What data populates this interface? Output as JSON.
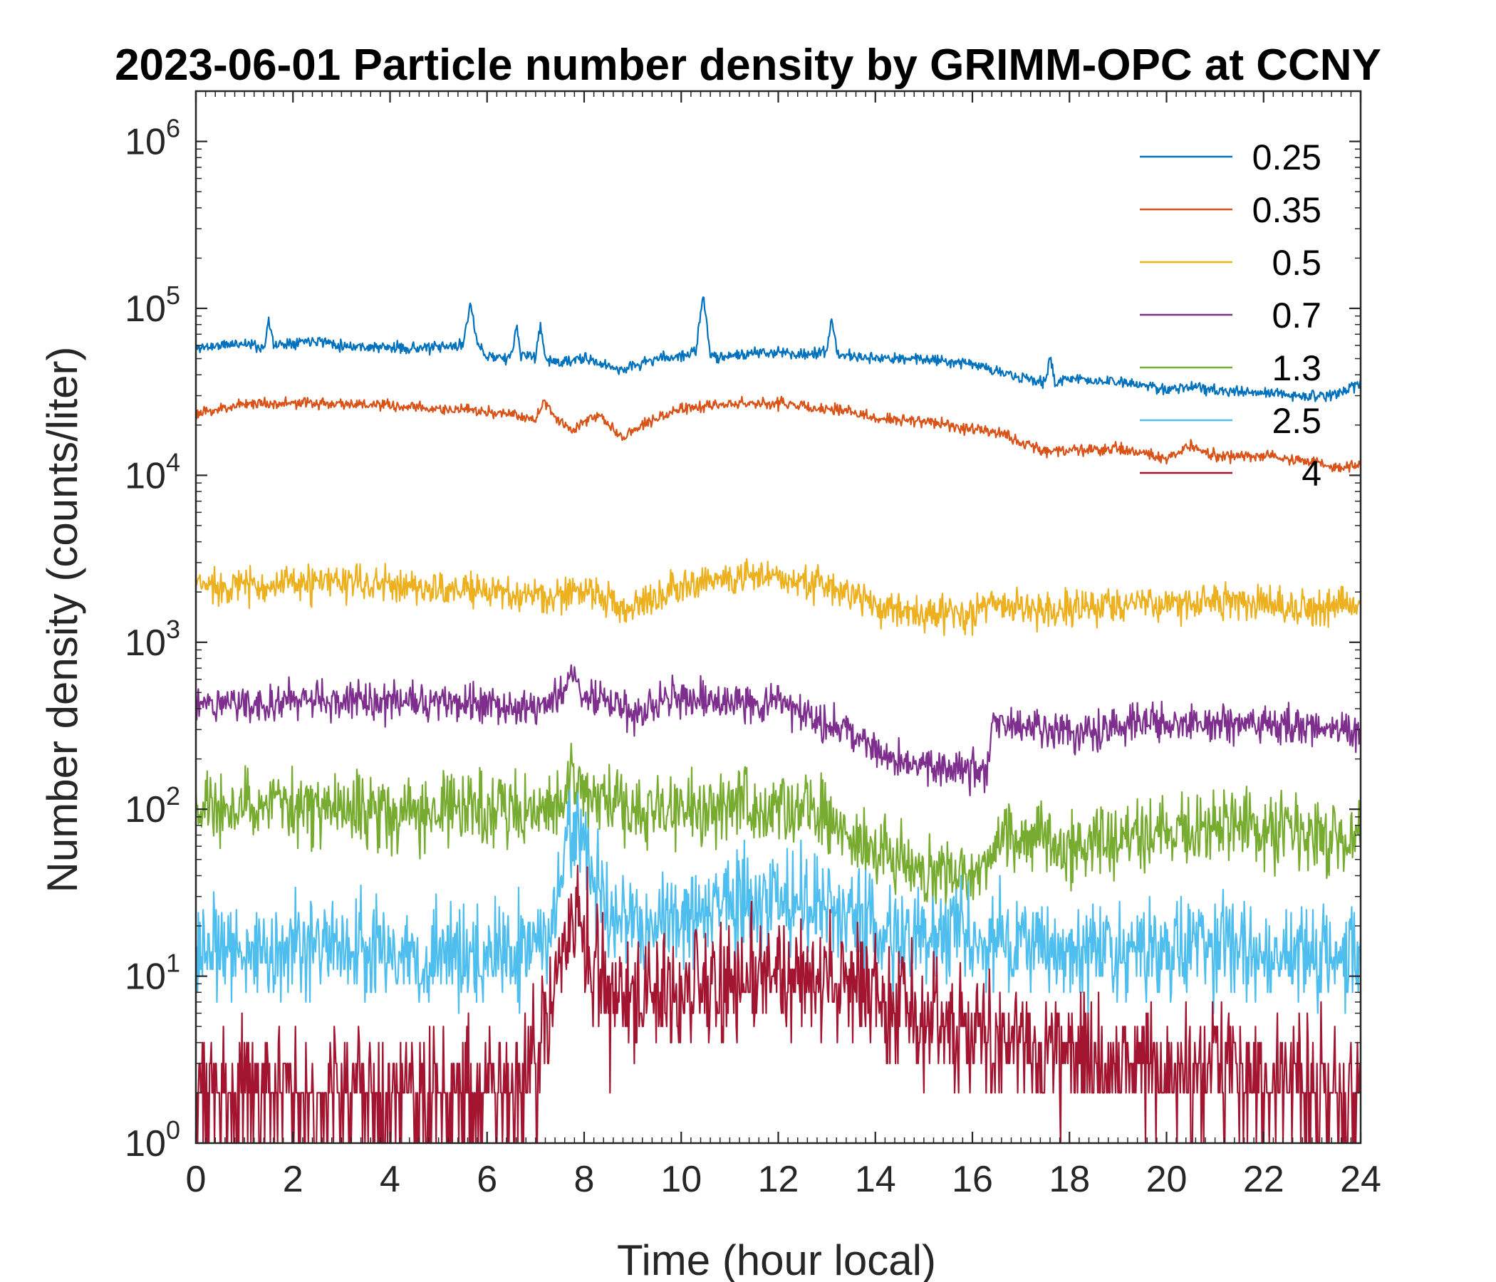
{
  "chart_data": {
    "type": "line",
    "title": "2023-06-01 Particle number density by GRIMM-OPC at CCNY",
    "xlabel": "Time (hour local)",
    "ylabel": "Number density (counts/liter)",
    "xlim": [
      0,
      24
    ],
    "xticks": [
      0,
      2,
      4,
      6,
      8,
      10,
      12,
      14,
      16,
      18,
      20,
      22,
      24
    ],
    "yscale": "log",
    "ylim": [
      1,
      2000000
    ],
    "yticks": [
      {
        "value": 1,
        "base": "10",
        "exp": "0"
      },
      {
        "value": 10,
        "base": "10",
        "exp": "1"
      },
      {
        "value": 100,
        "base": "10",
        "exp": "2"
      },
      {
        "value": 1000,
        "base": "10",
        "exp": "3"
      },
      {
        "value": 10000,
        "base": "10",
        "exp": "4"
      },
      {
        "value": 100000,
        "base": "10",
        "exp": "5"
      },
      {
        "value": 1000000,
        "base": "10",
        "exp": "6"
      }
    ],
    "legend_position": "top-right",
    "series": [
      {
        "name": "0.25",
        "color": "#0072BD",
        "x": [
          0,
          1,
          1.4,
          1.5,
          1.6,
          2,
          2.5,
          3,
          4,
          5,
          5.5,
          5.65,
          5.8,
          6,
          6.5,
          6.6,
          6.7,
          7,
          7.1,
          7.2,
          7.5,
          8,
          8.5,
          8.8,
          9,
          9.5,
          10,
          10.3,
          10.45,
          10.6,
          11,
          12,
          12.5,
          13,
          13.1,
          13.2,
          13.4,
          14,
          15,
          16,
          16.5,
          17,
          17.5,
          17.6,
          17.7,
          18,
          19,
          20,
          20.5,
          21,
          22,
          23,
          23.5,
          24
        ],
        "values": [
          58000,
          62000,
          58000,
          85000,
          60000,
          63000,
          65000,
          60000,
          58000,
          58000,
          60000,
          110000,
          60000,
          52000,
          50000,
          80000,
          52000,
          52000,
          80000,
          50000,
          47000,
          50000,
          45000,
          43000,
          45000,
          50000,
          52000,
          55000,
          120000,
          52000,
          52000,
          55000,
          53000,
          55000,
          85000,
          55000,
          52000,
          50000,
          50000,
          47000,
          42000,
          38000,
          36000,
          52000,
          36000,
          38000,
          36000,
          33000,
          34000,
          32000,
          31000,
          30000,
          30000,
          36000
        ],
        "noise": 0.05,
        "seed": 11
      },
      {
        "name": "0.35",
        "color": "#D95319",
        "x": [
          0,
          0.5,
          1,
          2,
          3,
          4,
          5,
          6,
          7,
          7.2,
          7.4,
          7.8,
          8,
          8.3,
          8.6,
          8.8,
          9,
          9.5,
          10,
          10.5,
          11,
          12,
          12.5,
          13,
          13.5,
          14,
          15,
          16,
          16.5,
          17,
          17.5,
          18,
          19,
          20,
          20.5,
          21,
          22,
          23,
          23.5,
          24
        ],
        "values": [
          23000,
          25000,
          27000,
          27000,
          27000,
          26000,
          25000,
          24000,
          22000,
          28000,
          22000,
          19000,
          21000,
          23000,
          19000,
          17000,
          19000,
          22000,
          25000,
          26000,
          27000,
          27000,
          26000,
          25000,
          24000,
          22000,
          21000,
          19000,
          18000,
          16000,
          14000,
          14000,
          14500,
          12500,
          15000,
          13000,
          13000,
          12000,
          11000,
          11500
        ],
        "noise": 0.05,
        "seed": 23
      },
      {
        "name": "0.5",
        "color": "#EDB120",
        "x": [
          0,
          1,
          2,
          3,
          4,
          5,
          6,
          7,
          7.5,
          7.8,
          8,
          8.5,
          9,
          9.5,
          10,
          11,
          12,
          12.5,
          13,
          13.5,
          14,
          15,
          16,
          16.5,
          17,
          18,
          19,
          20,
          21,
          22,
          23,
          24
        ],
        "values": [
          2200,
          2200,
          2200,
          2300,
          2200,
          2100,
          2000,
          1900,
          1800,
          2200,
          2000,
          1800,
          1600,
          1900,
          2300,
          2400,
          2500,
          2400,
          2100,
          2000,
          1600,
          1500,
          1500,
          1700,
          1600,
          1550,
          1650,
          1700,
          1800,
          1700,
          1600,
          1700
        ],
        "noise": 0.16,
        "seed": 37
      },
      {
        "name": "0.7",
        "color": "#7E2F8E",
        "x": [
          0,
          1,
          2,
          3,
          4,
          5,
          6,
          7,
          7.5,
          7.8,
          8,
          8.5,
          9,
          9.5,
          10,
          11,
          12,
          12.5,
          13,
          13.5,
          14,
          15,
          16,
          16.3,
          16.4,
          17,
          18,
          19,
          20,
          21,
          22,
          23,
          24
        ],
        "values": [
          430,
          440,
          440,
          460,
          430,
          440,
          420,
          400,
          460,
          650,
          480,
          440,
          380,
          420,
          460,
          430,
          430,
          380,
          330,
          300,
          220,
          180,
          170,
          170,
          330,
          310,
          290,
          310,
          330,
          330,
          320,
          300,
          280
        ],
        "noise": 0.17,
        "seed": 51
      },
      {
        "name": "1.3",
        "color": "#77AC30",
        "x": [
          0,
          1,
          2,
          3,
          4,
          5,
          6,
          7,
          7.5,
          7.8,
          8,
          8.5,
          9,
          10,
          11,
          12,
          12.5,
          13,
          13.5,
          14,
          15,
          16,
          16.3,
          16.5,
          17,
          18,
          19,
          20,
          21,
          22,
          23,
          24
        ],
        "values": [
          100,
          105,
          100,
          105,
          100,
          95,
          100,
          100,
          105,
          170,
          120,
          110,
          100,
          95,
          100,
          105,
          100,
          85,
          70,
          55,
          42,
          42,
          45,
          70,
          68,
          62,
          65,
          72,
          78,
          75,
          68,
          65
        ],
        "noise": 0.33,
        "seed": 67
      },
      {
        "name": "2.5",
        "color": "#4DBEEE",
        "x": [
          0,
          1,
          2,
          3,
          4,
          5,
          6,
          7,
          7.4,
          7.6,
          7.9,
          8.2,
          8.5,
          9,
          10,
          11,
          12,
          13,
          14,
          15,
          16,
          17,
          18,
          19,
          20,
          21,
          22,
          23,
          24
        ],
        "values": [
          14,
          14,
          14,
          14,
          14,
          14,
          14,
          14,
          20,
          60,
          70,
          35,
          25,
          20,
          22,
          26,
          27,
          25,
          20,
          18,
          16,
          15,
          15,
          15,
          15,
          15,
          14,
          13,
          13
        ],
        "noise": 0.45,
        "seed": 83
      },
      {
        "name": "4",
        "color": "#A2142F",
        "x": [
          0,
          1,
          2,
          3,
          4,
          5,
          6,
          6.8,
          7.2,
          7.6,
          7.9,
          8.2,
          8.5,
          9,
          10,
          11,
          12,
          13,
          14,
          15,
          16,
          17,
          18,
          19,
          20,
          21,
          22,
          23,
          24
        ],
        "values": [
          2,
          2,
          2,
          2.2,
          2,
          2,
          2,
          2.5,
          5,
          18,
          25,
          12,
          8,
          7,
          8,
          9,
          10,
          9,
          8,
          5,
          4.5,
          4,
          3.5,
          3,
          2.8,
          2.8,
          2.5,
          2.2,
          2
        ],
        "noise": 0.55,
        "seed": 97
      }
    ]
  }
}
